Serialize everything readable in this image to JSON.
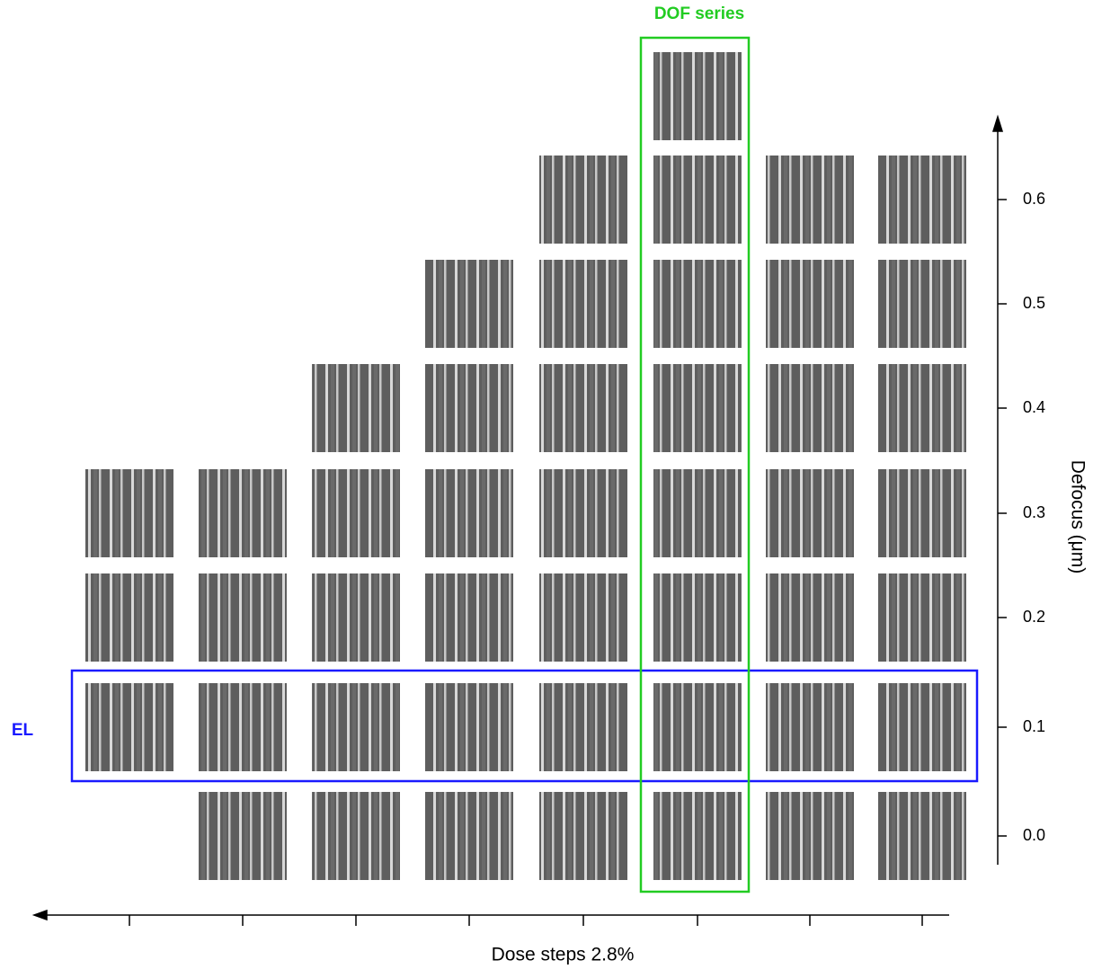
{
  "annotations": {
    "dof": "DOF series",
    "el": "EL"
  },
  "x_axis": {
    "label": "Dose steps 2.8%"
  },
  "y_axis": {
    "label": "Defocus (μm)",
    "ticks": [
      "0.6",
      "0.5",
      "0.4",
      "0.3",
      "0.2",
      "0.1",
      "0.0"
    ]
  }
}
